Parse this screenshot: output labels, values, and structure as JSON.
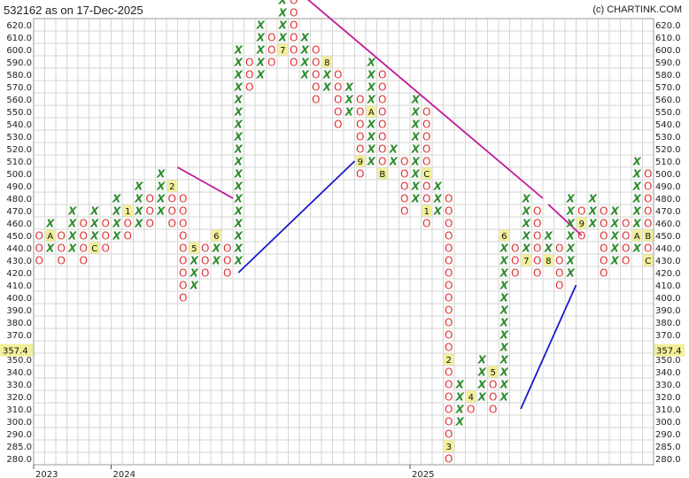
{
  "title": "532162 as on 17-Dec-2025",
  "credit": "(c) CHARTINK.COM",
  "chart_data": {
    "type": "point-and-figure",
    "y_ticks": [
      "620.0",
      "610.0",
      "600.0",
      "590.0",
      "580.0",
      "570.0",
      "560.0",
      "550.0",
      "540.0",
      "530.0",
      "520.0",
      "510.0",
      "500.0",
      "490.0",
      "480.0",
      "470.0",
      "460.0",
      "450.0",
      "440.0",
      "430.0",
      "420.0",
      "410.0",
      "400.0",
      "390.0",
      "380.0",
      "370.0",
      "360.0",
      "350.0",
      "340.0",
      "330.0",
      "320.0",
      "310.0",
      "300.0",
      "290.0",
      "285.0",
      "280.0"
    ],
    "last_price": "357.4",
    "x_labels": [
      {
        "label": "2023",
        "col": 0
      },
      {
        "label": "2024",
        "col": 7
      },
      {
        "label": "2025",
        "col": 34
      }
    ],
    "colors": {
      "x": "#2e8b2e",
      "o": "#e03030",
      "resistance": "#c0189a",
      "support": "#1a1acc",
      "grid": "#d6d6d6",
      "price_box": "#f2ef9a"
    },
    "columns": [
      {
        "t": "O",
        "from": 16,
        "to": 18
      },
      {
        "t": "X",
        "from": 17,
        "to": 19,
        "marks": {
          "18": "A"
        }
      },
      {
        "t": "O",
        "from": 16,
        "to": 18
      },
      {
        "t": "X",
        "from": 17,
        "to": 20
      },
      {
        "t": "O",
        "from": 16,
        "to": 19
      },
      {
        "t": "X",
        "from": 17,
        "to": 20,
        "marks": {
          "17": "C"
        }
      },
      {
        "t": "O",
        "from": 17,
        "to": 19
      },
      {
        "t": "X",
        "from": 18,
        "to": 21
      },
      {
        "t": "O",
        "from": 18,
        "to": 20,
        "marks": {
          "20": "1"
        }
      },
      {
        "t": "X",
        "from": 19,
        "to": 22
      },
      {
        "t": "O",
        "from": 19,
        "to": 21
      },
      {
        "t": "X",
        "from": 20,
        "to": 23
      },
      {
        "t": "O",
        "from": 19,
        "to": 22,
        "marks": {
          "22": "2"
        }
      },
      {
        "t": "O",
        "from": 13,
        "to": 21
      },
      {
        "t": "X",
        "from": 14,
        "to": 17,
        "marks": {
          "17": "5"
        }
      },
      {
        "t": "O",
        "from": 15,
        "to": 17
      },
      {
        "t": "X",
        "from": 16,
        "to": 18,
        "marks": {
          "18": "6"
        }
      },
      {
        "t": "O",
        "from": 15,
        "to": 17
      },
      {
        "t": "X",
        "from": 16,
        "to": 33
      },
      {
        "t": "O",
        "from": 30,
        "to": 32
      },
      {
        "t": "X",
        "from": 31,
        "to": 35
      },
      {
        "t": "O",
        "from": 32,
        "to": 34
      },
      {
        "t": "X",
        "from": 33,
        "to": 38,
        "marks": {
          "33": "7"
        }
      },
      {
        "t": "O",
        "from": 32,
        "to": 37
      },
      {
        "t": "X",
        "from": 31,
        "to": 34
      },
      {
        "t": "O",
        "from": 29,
        "to": 33
      },
      {
        "t": "X",
        "from": 30,
        "to": 32,
        "marks": {
          "32": "8"
        }
      },
      {
        "t": "O",
        "from": 27,
        "to": 31
      },
      {
        "t": "X",
        "from": 28,
        "to": 30
      },
      {
        "t": "O",
        "from": 23,
        "to": 29,
        "marks": {
          "24": "9"
        }
      },
      {
        "t": "X",
        "from": 24,
        "to": 32,
        "marks": {
          "28": "A"
        }
      },
      {
        "t": "O",
        "from": 23,
        "to": 31,
        "marks": {
          "23": "B"
        }
      },
      {
        "t": "X",
        "from": 24,
        "to": 25
      },
      {
        "t": "O",
        "from": 20,
        "to": 24
      },
      {
        "t": "X",
        "from": 21,
        "to": 29
      },
      {
        "t": "O",
        "from": 19,
        "to": 28,
        "marks": {
          "23": "C",
          "20": "1"
        }
      },
      {
        "t": "X",
        "from": 20,
        "to": 22
      },
      {
        "t": "O",
        "from": 0,
        "to": 21,
        "marks": {
          "8": "2",
          "1": "3"
        }
      },
      {
        "t": "X",
        "from": 3,
        "to": 6
      },
      {
        "t": "O",
        "from": 4,
        "to": 5,
        "marks": {
          "5": "4"
        }
      },
      {
        "t": "X",
        "from": 5,
        "to": 8
      },
      {
        "t": "O",
        "from": 4,
        "to": 7,
        "marks": {
          "7": "5"
        }
      },
      {
        "t": "X",
        "from": 5,
        "to": 18,
        "marks": {
          "18": "6"
        }
      },
      {
        "t": "O",
        "from": 15,
        "to": 17
      },
      {
        "t": "X",
        "from": 16,
        "to": 21,
        "marks": {
          "16": "7"
        }
      },
      {
        "t": "O",
        "from": 15,
        "to": 20
      },
      {
        "t": "X",
        "from": 16,
        "to": 18,
        "marks": {
          "16": "8"
        }
      },
      {
        "t": "O",
        "from": 14,
        "to": 17
      },
      {
        "t": "X",
        "from": 15,
        "to": 21
      },
      {
        "t": "O",
        "from": 18,
        "to": 20,
        "marks": {
          "19": "9"
        }
      },
      {
        "t": "X",
        "from": 19,
        "to": 21
      },
      {
        "t": "O",
        "from": 15,
        "to": 20
      },
      {
        "t": "X",
        "from": 16,
        "to": 20
      },
      {
        "t": "O",
        "from": 16,
        "to": 19
      },
      {
        "t": "X",
        "from": 17,
        "to": 24,
        "marks": {
          "18": "A"
        }
      },
      {
        "t": "O",
        "from": 16,
        "to": 23,
        "marks": {
          "18": "B",
          "16": "C"
        }
      }
    ],
    "trendlines": [
      {
        "kind": "resistance",
        "from": [
          12.5,
          23.5
        ],
        "to": [
          17.5,
          21
        ]
      },
      {
        "kind": "support",
        "from": [
          18,
          15
        ],
        "to": [
          28.5,
          24
        ]
      },
      {
        "kind": "resistance",
        "from": [
          23,
          38
        ],
        "to": [
          45.5,
          21
        ]
      },
      {
        "kind": "resistance",
        "from": [
          46,
          20.5
        ],
        "to": [
          49,
          18
        ]
      },
      {
        "kind": "support",
        "from": [
          43.5,
          4
        ],
        "to": [
          48.5,
          14
        ]
      }
    ]
  }
}
